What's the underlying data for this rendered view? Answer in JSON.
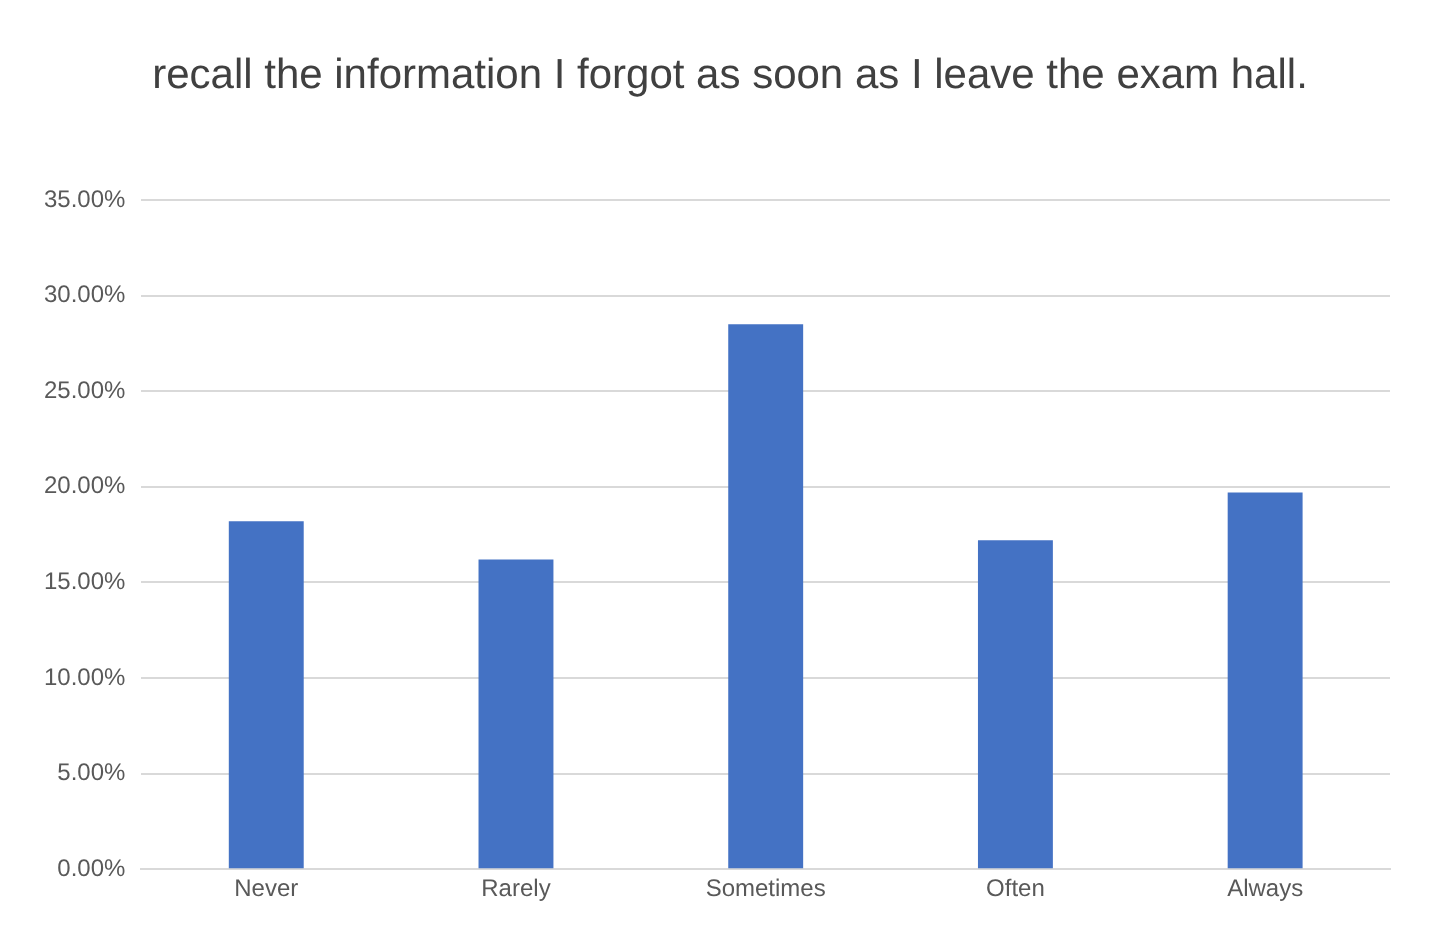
{
  "chart_data": {
    "type": "bar",
    "title": "recall the information I forgot as soon as I leave the exam hall.",
    "categories": [
      "Never",
      "Rarely",
      "Sometimes",
      "Often",
      "Always"
    ],
    "values": [
      18.2,
      16.2,
      28.5,
      17.2,
      19.7
    ],
    "color": "#4472c4",
    "ylim": [
      0,
      35
    ],
    "yticks": [
      {
        "value": 0,
        "label": "0.00%"
      },
      {
        "value": 5,
        "label": "5.00%"
      },
      {
        "value": 10,
        "label": "10.00%"
      },
      {
        "value": 15,
        "label": "15.00%"
      },
      {
        "value": 20,
        "label": "20.00%"
      },
      {
        "value": 25,
        "label": "25.00%"
      },
      {
        "value": 30,
        "label": "30.00%"
      },
      {
        "value": 35,
        "label": "35.00%"
      }
    ],
    "grid": "y"
  }
}
